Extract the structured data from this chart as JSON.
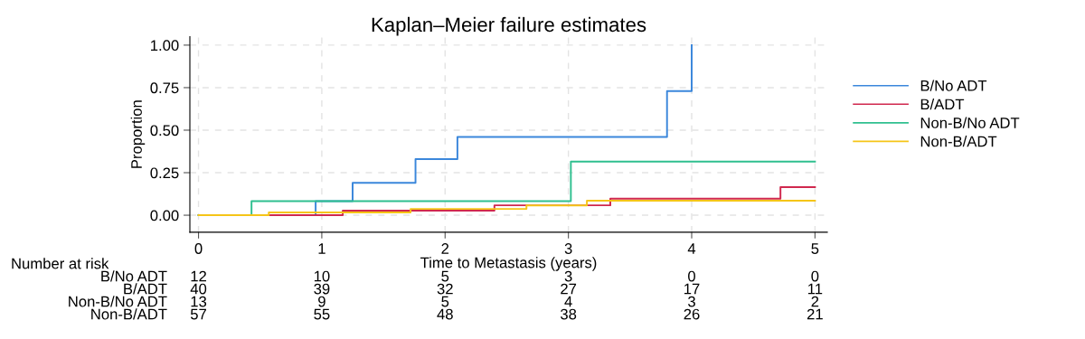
{
  "chart_data": {
    "type": "step",
    "title": "Kaplan–Meier failure estimates",
    "xlabel": "Time to Metastasis (years)",
    "ylabel": "Proportion",
    "series": [
      {
        "name": "B/No ADT",
        "color": "#3b87db",
        "x": [
          0,
          0.95,
          1.25,
          1.76,
          2.1,
          3.8,
          4.0
        ],
        "values": [
          0,
          0.083,
          0.19,
          0.33,
          0.46,
          0.73,
          1.0
        ]
      },
      {
        "name": "B/ADT",
        "color": "#d0284e",
        "x": [
          0.58,
          1.17,
          2.4,
          3.34,
          4.72,
          5.0
        ],
        "values": [
          0,
          0.027,
          0.058,
          0.097,
          0.165,
          0.165
        ]
      },
      {
        "name": "Non-B/No ADT",
        "color": "#2fbf8f",
        "x": [
          0,
          0.43,
          3.02,
          5.0
        ],
        "values": [
          0,
          0.083,
          0.315,
          0.315
        ]
      },
      {
        "name": "Non-B/ADT",
        "color": "#f5c518",
        "x": [
          0,
          0.57,
          1.72,
          2.66,
          3.15,
          5.0
        ],
        "values": [
          0,
          0.016,
          0.037,
          0.057,
          0.085,
          0.085
        ]
      }
    ],
    "xlim": [
      -0.07,
      5.1
    ],
    "ylim": [
      -0.1,
      1.05
    ],
    "xticks": [
      0,
      1,
      2,
      3,
      4,
      5
    ],
    "yticks": [
      {
        "value": 0,
        "label": "0.00"
      },
      {
        "value": 0.25,
        "label": "0.25"
      },
      {
        "value": 0.5,
        "label": "0.50"
      },
      {
        "value": 0.75,
        "label": "0.75"
      },
      {
        "value": 1,
        "label": "1.00"
      }
    ],
    "grid": true,
    "legend": "right",
    "line_style": "solid",
    "marker": "none",
    "annotations": [
      "Number at risk",
      "B/No ADT",
      "12",
      "10",
      "5",
      "3",
      "0",
      "0",
      "B/ADT",
      "40",
      "39",
      "32",
      "27",
      "17",
      "11",
      "Non-B/No ADT",
      "13",
      "9",
      "5",
      "4",
      "3",
      "2",
      "Non-B/ADT",
      "57",
      "55",
      "48",
      "38",
      "26",
      "21"
    ]
  }
}
